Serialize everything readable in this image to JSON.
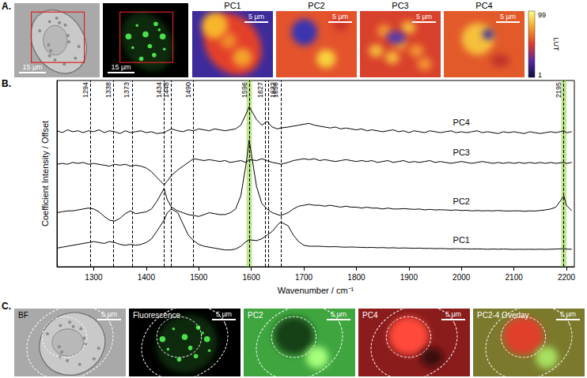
{
  "panel_a": {
    "label": "A.",
    "images": [
      {
        "scale_bar": "15 µm"
      },
      {
        "scale_bar": "15 µm"
      },
      {
        "title": "PC1",
        "scale_bar": "5 µm"
      },
      {
        "title": "PC2",
        "scale_bar": "5 µm"
      },
      {
        "title": "PC3",
        "scale_bar": "5 µm"
      },
      {
        "title": "PC4",
        "scale_bar": "5 µm"
      }
    ],
    "colorbar": {
      "label": "LUT",
      "range": [
        1,
        99
      ]
    }
  },
  "chart_data": {
    "type": "line",
    "panel_label": "B.",
    "xlabel": "Wavenumber / cm⁻¹",
    "ylabel": "Coefficient Intensity / Offset",
    "xlim": [
      1230,
      2215
    ],
    "xticks": [
      1300,
      1400,
      1500,
      1600,
      1700,
      1800,
      1900,
      2000,
      2100,
      2200
    ],
    "ylim": [
      0,
      10
    ],
    "tick_labels": "x",
    "annotations": [
      1294,
      1338,
      1373,
      1434,
      1448,
      1490,
      1596,
      1627,
      1632,
      1656,
      2195
    ],
    "highlights": [
      1596,
      2195
    ],
    "x": [
      1230,
      1240,
      1250,
      1260,
      1270,
      1280,
      1290,
      1300,
      1310,
      1320,
      1330,
      1340,
      1350,
      1360,
      1370,
      1380,
      1390,
      1400,
      1410,
      1420,
      1434,
      1440,
      1448,
      1460,
      1470,
      1480,
      1490,
      1500,
      1510,
      1520,
      1530,
      1540,
      1550,
      1560,
      1570,
      1580,
      1590,
      1596,
      1610,
      1620,
      1630,
      1640,
      1650,
      1656,
      1670,
      1680,
      1690,
      1700,
      1710,
      1720,
      1730,
      1740,
      1750,
      1760,
      1770,
      1780,
      1790,
      1800,
      1810,
      1820,
      1830,
      1840,
      1850,
      1860,
      1870,
      1880,
      1890,
      1900,
      1910,
      1920,
      1930,
      1940,
      1950,
      1960,
      1970,
      1980,
      1990,
      2000,
      2010,
      2020,
      2030,
      2040,
      2050,
      2060,
      2070,
      2080,
      2090,
      2100,
      2110,
      2120,
      2130,
      2140,
      2150,
      2160,
      2170,
      2180,
      2195,
      2200,
      2210
    ],
    "series": [
      {
        "name": "PC4",
        "color": "#000000",
        "values": [
          7.3,
          7.2,
          7.35,
          7.25,
          7.3,
          7.2,
          7.3,
          7.25,
          7.35,
          7.2,
          7.3,
          7.25,
          7.15,
          7.3,
          7.2,
          7.25,
          7.3,
          7.2,
          7.25,
          7.15,
          7.2,
          7.3,
          7.4,
          7.3,
          7.25,
          7.35,
          7.3,
          7.4,
          7.35,
          7.3,
          7.4,
          7.35,
          7.3,
          7.35,
          7.4,
          7.6,
          8.2,
          8.6,
          7.9,
          7.6,
          7.8,
          7.5,
          7.4,
          7.45,
          7.5,
          7.55,
          7.6,
          7.65,
          7.7,
          7.6,
          7.55,
          7.5,
          7.45,
          7.5,
          7.4,
          7.45,
          7.4,
          7.35,
          7.4,
          7.3,
          7.35,
          7.3,
          7.25,
          7.3,
          7.35,
          7.25,
          7.3,
          7.2,
          7.3,
          7.25,
          7.2,
          7.3,
          7.25,
          7.2,
          7.25,
          7.3,
          7.2,
          7.25,
          7.2,
          7.25,
          7.3,
          7.2,
          7.25,
          7.2,
          7.15,
          7.25,
          7.2,
          7.25,
          7.2,
          7.15,
          7.25,
          7.2,
          7.15,
          7.2,
          7.25,
          7.2,
          7.3,
          7.2,
          7.25
        ]
      },
      {
        "name": "PC3",
        "color": "#000000",
        "values": [
          5.5,
          5.55,
          5.5,
          5.6,
          5.55,
          5.6,
          5.5,
          5.55,
          5.5,
          5.45,
          5.4,
          5.5,
          5.45,
          5.5,
          5.4,
          5.45,
          5.4,
          5.3,
          5.1,
          4.8,
          4.4,
          4.6,
          4.9,
          5.2,
          5.4,
          5.6,
          5.8,
          5.75,
          5.7,
          5.75,
          5.7,
          5.65,
          5.7,
          5.6,
          5.65,
          5.7,
          5.6,
          5.75,
          5.7,
          5.8,
          5.7,
          5.6,
          5.55,
          5.5,
          5.6,
          5.7,
          5.75,
          5.8,
          5.75,
          5.8,
          5.7,
          5.75,
          5.7,
          5.65,
          5.7,
          5.75,
          5.7,
          5.65,
          5.7,
          5.65,
          5.7,
          5.6,
          5.65,
          5.7,
          5.6,
          5.65,
          5.7,
          5.6,
          5.65,
          5.6,
          5.65,
          5.7,
          5.6,
          5.65,
          5.6,
          5.55,
          5.6,
          5.65,
          5.6,
          5.55,
          5.6,
          5.65,
          5.6,
          5.55,
          5.6,
          5.55,
          5.6,
          5.55,
          5.6,
          5.55,
          5.6,
          5.55,
          5.6,
          5.55,
          5.6,
          5.55,
          5.6,
          5.55,
          5.6
        ]
      },
      {
        "name": "PC2",
        "color": "#000000",
        "values": [
          2.9,
          2.95,
          3.0,
          3.0,
          3.05,
          3.1,
          3.15,
          3.1,
          2.95,
          2.7,
          2.5,
          2.45,
          2.6,
          2.85,
          3.0,
          2.85,
          2.9,
          2.95,
          3.1,
          3.5,
          4.2,
          3.6,
          3.2,
          3.0,
          2.9,
          2.8,
          2.75,
          2.7,
          2.8,
          2.9,
          2.85,
          2.8,
          2.8,
          2.9,
          3.1,
          3.8,
          5.5,
          6.8,
          4.3,
          3.4,
          3.1,
          2.9,
          2.8,
          2.75,
          2.9,
          3.1,
          3.25,
          3.3,
          3.35,
          3.3,
          3.3,
          3.25,
          3.3,
          3.25,
          3.2,
          3.25,
          3.2,
          3.2,
          3.15,
          3.2,
          3.15,
          3.15,
          3.1,
          3.15,
          3.1,
          3.1,
          3.12,
          3.1,
          3.08,
          3.1,
          3.05,
          3.08,
          3.05,
          3.06,
          3.05,
          3.03,
          3.05,
          3.02,
          3.03,
          3.0,
          3.02,
          3.0,
          3.01,
          3.0,
          3.02,
          3.0,
          2.99,
          3.0,
          3.0,
          2.98,
          3.0,
          2.99,
          3.02,
          3.05,
          3.1,
          3.2,
          3.8,
          3.3,
          3.0
        ]
      },
      {
        "name": "PC1",
        "color": "#000000",
        "values": [
          1.0,
          1.05,
          1.1,
          1.15,
          1.2,
          1.25,
          1.3,
          1.35,
          1.3,
          1.25,
          1.35,
          1.3,
          1.2,
          1.15,
          1.2,
          1.15,
          1.2,
          1.3,
          1.5,
          1.9,
          2.5,
          2.9,
          3.1,
          2.9,
          2.3,
          1.7,
          1.4,
          1.2,
          1.1,
          1.05,
          1.0,
          0.95,
          0.9,
          0.9,
          0.95,
          1.1,
          1.35,
          1.45,
          1.4,
          1.5,
          1.7,
          1.9,
          2.25,
          2.4,
          2.2,
          1.7,
          1.35,
          1.15,
          1.1,
          1.1,
          1.1,
          1.08,
          1.07,
          1.08,
          1.06,
          1.05,
          1.06,
          1.05,
          1.04,
          1.03,
          1.04,
          1.02,
          1.03,
          1.01,
          1.02,
          1.0,
          1.01,
          1.0,
          0.99,
          1.0,
          0.98,
          0.99,
          0.97,
          0.98,
          0.97,
          0.96,
          0.97,
          0.96,
          0.96,
          0.95,
          0.96,
          0.95,
          0.94,
          0.95,
          0.94,
          0.95,
          0.94,
          0.93,
          0.94,
          0.93,
          0.94,
          0.93,
          0.94,
          0.93,
          0.94,
          0.95,
          0.97,
          0.95,
          0.94
        ]
      }
    ]
  },
  "panel_c": {
    "label": "C.",
    "images": [
      {
        "title": "BF",
        "scale_bar": "5 µm"
      },
      {
        "title": "Fluorescence",
        "scale_bar": "5 µm"
      },
      {
        "title": "PC2",
        "scale_bar": "5 µm"
      },
      {
        "title": "PC4",
        "scale_bar": "5 µm"
      },
      {
        "title": "PC2-4 Overlay",
        "scale_bar": "5 µm"
      }
    ]
  }
}
